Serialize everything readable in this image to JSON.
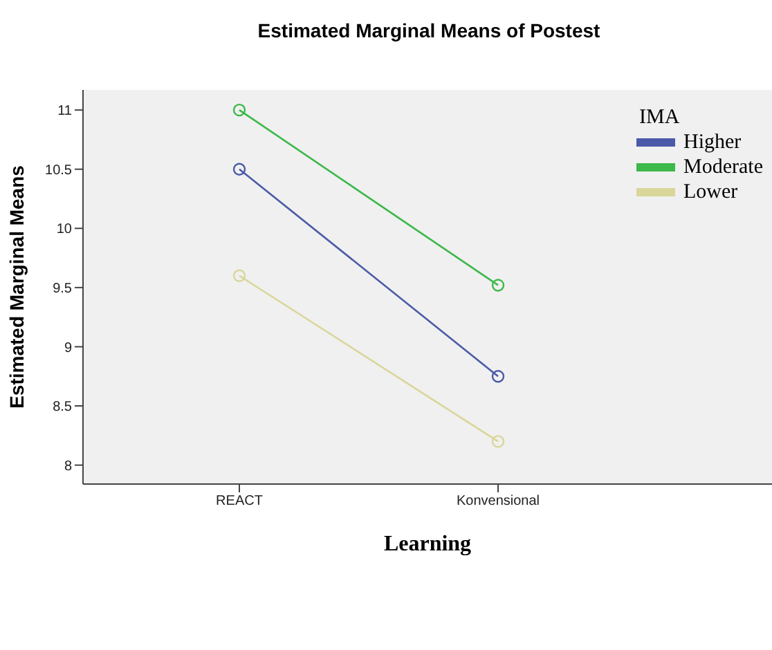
{
  "chart_data": {
    "type": "line",
    "title": "Estimated Marginal Means of Postest",
    "xlabel": "Learning",
    "ylabel": "Estimated Marginal Means",
    "legend_title": "IMA",
    "categories": [
      "REACT",
      "Konvensional"
    ],
    "series": [
      {
        "name": "Higher",
        "color": "#4a5aa8",
        "values": [
          10.5,
          8.75
        ]
      },
      {
        "name": "Moderate",
        "color": "#3db84a",
        "values": [
          11,
          9.52
        ]
      },
      {
        "name": "Lower",
        "color": "#d9d69a",
        "values": [
          9.6,
          8.2
        ]
      }
    ],
    "ylim": [
      7.84,
      11.17
    ],
    "yticks": [
      8,
      8.5,
      9,
      9.5,
      10,
      10.5,
      11
    ],
    "grid": false,
    "legend": "top right",
    "marker": "circle",
    "line_style": "solid"
  }
}
